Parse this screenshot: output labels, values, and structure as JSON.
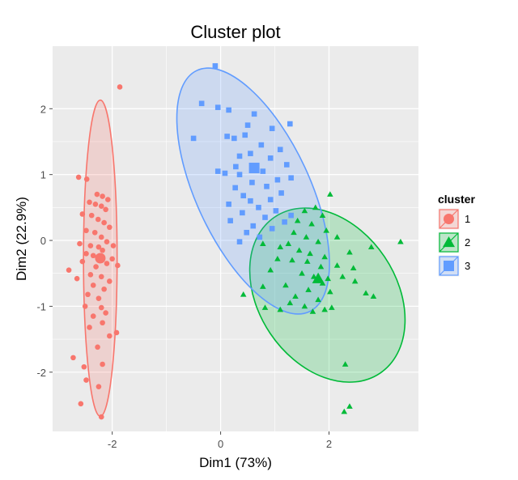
{
  "chart_data": {
    "type": "scatter",
    "title": "Cluster plot",
    "xlabel": "Dim1 (73%)",
    "ylabel": "Dim2 (22.9%)",
    "xlim": [
      -3.1,
      3.65
    ],
    "ylim": [
      -2.9,
      2.95
    ],
    "xticks": [
      -2,
      0,
      2
    ],
    "xtick_labels": [
      "-2",
      "0",
      "2"
    ],
    "yticks": [
      -2,
      -1,
      0,
      1,
      2
    ],
    "ytick_labels": [
      "-2",
      "-1",
      "0",
      "1",
      "2"
    ],
    "grid": true,
    "legend": {
      "title": "cluster",
      "position": "right"
    },
    "colors": {
      "1": "#F8766D",
      "2": "#00BA38",
      "3": "#619CFF",
      "panel": "#EBEBEB",
      "grid": "#FFFFFF"
    },
    "series": [
      {
        "name": "1",
        "marker": "circle",
        "color": "#F8766D",
        "center": [
          -2.22,
          -0.27
        ],
        "ellipse": {
          "center": [
            -2.22,
            -0.27
          ],
          "rx": 0.31,
          "ry": 2.4,
          "rotation_deg": 0
        },
        "points": [
          [
            -1.86,
            2.33
          ],
          [
            -2.62,
            0.96
          ],
          [
            -2.47,
            0.93
          ],
          [
            -2.28,
            0.7
          ],
          [
            -2.18,
            0.67
          ],
          [
            -2.08,
            0.62
          ],
          [
            -2.42,
            0.58
          ],
          [
            -2.31,
            0.55
          ],
          [
            -2.2,
            0.52
          ],
          [
            -2.12,
            0.47
          ],
          [
            -2.55,
            0.4
          ],
          [
            -2.38,
            0.38
          ],
          [
            -2.26,
            0.32
          ],
          [
            -2.15,
            0.27
          ],
          [
            -2.05,
            0.2
          ],
          [
            -2.48,
            0.15
          ],
          [
            -2.32,
            0.12
          ],
          [
            -2.2,
            0.05
          ],
          [
            -2.1,
            -0.02
          ],
          [
            -2.6,
            -0.05
          ],
          [
            -2.4,
            -0.08
          ],
          [
            -2.25,
            -0.1
          ],
          [
            -1.98,
            -0.08
          ],
          [
            -2.18,
            -0.15
          ],
          [
            -2.48,
            -0.2
          ],
          [
            -2.35,
            -0.23
          ],
          [
            -2.22,
            -0.3
          ],
          [
            -2.1,
            -0.35
          ],
          [
            -2.0,
            -0.28
          ],
          [
            -1.9,
            -0.38
          ],
          [
            -2.55,
            -0.32
          ],
          [
            -2.3,
            -0.4
          ],
          [
            -2.8,
            -0.45
          ],
          [
            -2.65,
            -0.58
          ],
          [
            -2.4,
            -0.52
          ],
          [
            -2.2,
            -0.55
          ],
          [
            -2.05,
            -0.62
          ],
          [
            -2.35,
            -0.68
          ],
          [
            -2.15,
            -0.74
          ],
          [
            -2.45,
            -0.82
          ],
          [
            -2.25,
            -0.88
          ],
          [
            -2.5,
            -1.0
          ],
          [
            -2.2,
            -1.02
          ],
          [
            -2.12,
            -1.1
          ],
          [
            -2.35,
            -1.15
          ],
          [
            -2.18,
            -1.25
          ],
          [
            -2.42,
            -1.32
          ],
          [
            -2.05,
            -1.45
          ],
          [
            -1.92,
            -1.4
          ],
          [
            -2.27,
            -1.62
          ],
          [
            -2.72,
            -1.78
          ],
          [
            -2.52,
            -1.92
          ],
          [
            -2.18,
            -1.88
          ],
          [
            -2.48,
            -2.12
          ],
          [
            -2.25,
            -2.22
          ],
          [
            -2.58,
            -2.48
          ],
          [
            -2.2,
            -2.68
          ]
        ]
      },
      {
        "name": "2",
        "marker": "triangle",
        "color": "#00BA38",
        "center": [
          1.8,
          -0.58
        ],
        "ellipse": {
          "center": [
            1.97,
            -0.83
          ],
          "rx": 1.27,
          "ry": 1.43,
          "rotation_deg": -34
        },
        "points": [
          [
            3.32,
            -0.02
          ],
          [
            2.02,
            0.7
          ],
          [
            1.75,
            0.5
          ],
          [
            1.55,
            0.45
          ],
          [
            1.88,
            0.38
          ],
          [
            1.42,
            0.3
          ],
          [
            1.68,
            0.25
          ],
          [
            1.95,
            0.15
          ],
          [
            1.35,
            0.12
          ],
          [
            1.58,
            0.05
          ],
          [
            2.15,
            0.05
          ],
          [
            1.8,
            -0.02
          ],
          [
            1.25,
            -0.05
          ],
          [
            0.78,
            -0.05
          ],
          [
            1.1,
            -0.1
          ],
          [
            1.45,
            -0.15
          ],
          [
            1.65,
            -0.2
          ],
          [
            1.92,
            -0.25
          ],
          [
            2.38,
            -0.18
          ],
          [
            2.78,
            -0.1
          ],
          [
            1.05,
            -0.28
          ],
          [
            1.32,
            -0.3
          ],
          [
            1.6,
            -0.32
          ],
          [
            1.85,
            -0.4
          ],
          [
            2.15,
            -0.38
          ],
          [
            2.45,
            -0.42
          ],
          [
            0.92,
            -0.45
          ],
          [
            1.5,
            -0.5
          ],
          [
            1.72,
            -0.55
          ],
          [
            1.98,
            -0.58
          ],
          [
            2.25,
            -0.55
          ],
          [
            2.48,
            -0.62
          ],
          [
            1.88,
            -0.65
          ],
          [
            1.2,
            -0.68
          ],
          [
            0.78,
            -0.7
          ],
          [
            1.62,
            -0.75
          ],
          [
            2.02,
            -0.78
          ],
          [
            1.38,
            -0.85
          ],
          [
            2.68,
            -0.8
          ],
          [
            2.82,
            -0.85
          ],
          [
            1.8,
            -0.9
          ],
          [
            0.42,
            -0.82
          ],
          [
            1.28,
            -0.95
          ],
          [
            1.55,
            -1.0
          ],
          [
            1.92,
            -1.05
          ],
          [
            2.05,
            -1.02
          ],
          [
            1.7,
            -1.08
          ],
          [
            0.82,
            -1.02
          ],
          [
            1.1,
            -1.05
          ],
          [
            2.3,
            -1.88
          ],
          [
            2.38,
            -2.52
          ],
          [
            2.28,
            -2.6
          ]
        ]
      },
      {
        "name": "3",
        "marker": "square",
        "color": "#619CFF",
        "center": [
          0.62,
          1.1
        ],
        "ellipse": {
          "center": [
            0.6,
            0.75
          ],
          "rx": 1.05,
          "ry": 2.02,
          "rotation_deg": -25
        },
        "points": [
          [
            -0.1,
            2.65
          ],
          [
            -0.35,
            2.08
          ],
          [
            -0.05,
            2.02
          ],
          [
            0.15,
            1.98
          ],
          [
            0.62,
            1.92
          ],
          [
            1.28,
            1.77
          ],
          [
            0.5,
            1.75
          ],
          [
            0.12,
            1.58
          ],
          [
            0.25,
            1.55
          ],
          [
            0.45,
            1.6
          ],
          [
            0.95,
            1.7
          ],
          [
            -0.5,
            1.55
          ],
          [
            0.75,
            1.45
          ],
          [
            1.1,
            1.38
          ],
          [
            0.55,
            1.32
          ],
          [
            0.35,
            1.28
          ],
          [
            0.92,
            1.25
          ],
          [
            0.28,
            1.12
          ],
          [
            1.22,
            1.15
          ],
          [
            0.78,
            1.05
          ],
          [
            -0.05,
            1.05
          ],
          [
            0.08,
            1.02
          ],
          [
            0.35,
            1.0
          ],
          [
            1.05,
            0.92
          ],
          [
            1.3,
            0.95
          ],
          [
            0.58,
            0.88
          ],
          [
            0.85,
            0.82
          ],
          [
            0.27,
            0.8
          ],
          [
            0.42,
            0.68
          ],
          [
            1.12,
            0.72
          ],
          [
            0.92,
            0.62
          ],
          [
            0.55,
            0.6
          ],
          [
            0.15,
            0.55
          ],
          [
            0.7,
            0.5
          ],
          [
            1.02,
            0.45
          ],
          [
            0.4,
            0.42
          ],
          [
            1.3,
            0.38
          ],
          [
            0.82,
            0.35
          ],
          [
            0.18,
            0.3
          ],
          [
            1.18,
            0.28
          ],
          [
            0.6,
            0.22
          ],
          [
            0.95,
            0.18
          ],
          [
            0.48,
            0.12
          ],
          [
            0.72,
            0.05
          ],
          [
            0.35,
            -0.02
          ]
        ]
      }
    ]
  }
}
